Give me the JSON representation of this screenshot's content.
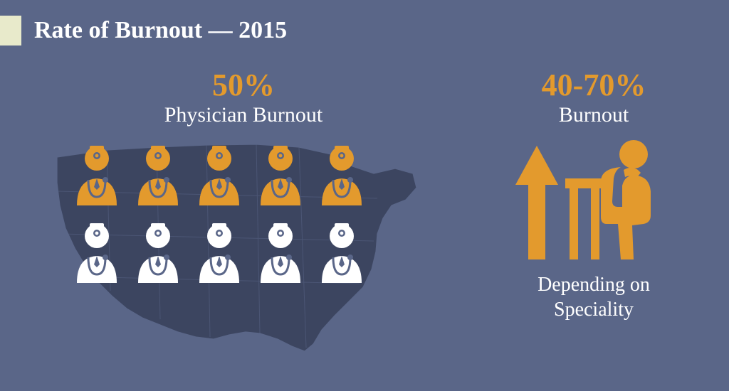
{
  "title": "Rate of Burnout — 2015",
  "colors": {
    "background": "#5a6688",
    "accent": "#e39a2d",
    "text_light": "#ffffff",
    "title_accent_block": "#e8eacb",
    "map_fill": "#3c4560",
    "map_stroke": "#5a6688",
    "icon_white": "#ffffff"
  },
  "left": {
    "percent": "50%",
    "label": "Physician Burnout",
    "grid": {
      "rows": 2,
      "cols": 5,
      "highlighted_count": 5,
      "highlight_color": "#e39a2d",
      "normal_color": "#ffffff"
    }
  },
  "right": {
    "percent": "40-70%",
    "label": "Burnout",
    "caption_line1": "Depending on",
    "caption_line2": "Speciality",
    "icon_color": "#e39a2d"
  },
  "typography": {
    "title_size": 34,
    "percent_size": 44,
    "label_size": 30,
    "caption_size": 28
  }
}
